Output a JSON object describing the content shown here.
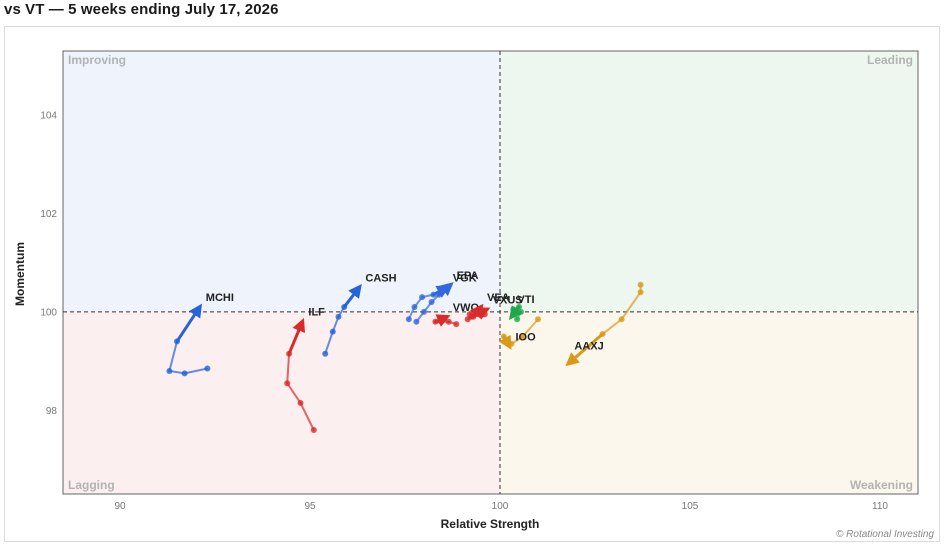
{
  "title": "vs VT — 5 weeks ending July 17, 2026",
  "copyright": "© Rotational Investing",
  "quadrants": {
    "improving": "Improving",
    "leading": "Leading",
    "lagging": "Lagging",
    "weakening": "Weakening"
  },
  "colors": {
    "improving_bg": "#eef3fc",
    "leading_bg": "#edf6ef",
    "lagging_bg": "#fcefef",
    "weakening_bg": "#fbf7ec",
    "quadrant_label": "#b3b3b3"
  },
  "chart_data": {
    "type": "scatter",
    "title": "vs VT — 5 weeks ending July 17, 2026",
    "xlabel": "Relative Strength",
    "ylabel": "Momentum",
    "xlim": [
      88.5,
      111
    ],
    "ylim": [
      96.3,
      105.3
    ],
    "xticks": [
      90,
      95,
      100,
      105,
      110
    ],
    "yticks": [
      98,
      100,
      102,
      104
    ],
    "center": [
      100,
      100
    ],
    "grid": false,
    "series": [
      {
        "name": "MCHI",
        "color": "#2563d9",
        "points": [
          [
            92.3,
            98.85
          ],
          [
            91.7,
            98.75
          ],
          [
            91.3,
            98.8
          ],
          [
            91.5,
            99.4
          ],
          [
            92.1,
            100.1
          ]
        ]
      },
      {
        "name": "CASH",
        "color": "#2563d9",
        "points": [
          [
            95.4,
            99.15
          ],
          [
            95.6,
            99.6
          ],
          [
            95.75,
            99.9
          ],
          [
            95.9,
            100.1
          ],
          [
            96.3,
            100.5
          ]
        ]
      },
      {
        "name": "VGK",
        "color": "#3068df",
        "points": [
          [
            97.6,
            99.85
          ],
          [
            97.75,
            100.1
          ],
          [
            97.95,
            100.3
          ],
          [
            98.25,
            100.35
          ],
          [
            98.6,
            100.5
          ]
        ]
      },
      {
        "name": "EPA",
        "color": "#3068df",
        "points": [
          [
            97.8,
            99.8
          ],
          [
            98.0,
            100.0
          ],
          [
            98.2,
            100.2
          ],
          [
            98.4,
            100.35
          ],
          [
            98.7,
            100.55
          ]
        ]
      },
      {
        "name": "ILF",
        "color": "#d92a2a",
        "points": [
          [
            95.1,
            97.6
          ],
          [
            94.75,
            98.15
          ],
          [
            94.4,
            98.55
          ],
          [
            94.45,
            99.15
          ],
          [
            94.8,
            99.8
          ]
        ]
      },
      {
        "name": "VWO",
        "color": "#d92a2a",
        "points": [
          [
            98.85,
            99.75
          ],
          [
            98.65,
            99.8
          ],
          [
            98.45,
            99.8
          ],
          [
            98.3,
            99.8
          ],
          [
            98.6,
            99.9
          ]
        ]
      },
      {
        "name": "VEA",
        "color": "#d92a2a",
        "points": [
          [
            99.2,
            99.95
          ],
          [
            99.4,
            100.0
          ],
          [
            99.6,
            99.95
          ],
          [
            99.35,
            99.95
          ],
          [
            99.5,
            100.1
          ]
        ]
      },
      {
        "name": "VXUS",
        "color": "#d92a2a",
        "points": [
          [
            99.15,
            99.85
          ],
          [
            99.3,
            99.9
          ],
          [
            99.45,
            99.95
          ],
          [
            99.25,
            99.9
          ],
          [
            99.65,
            100.05
          ]
        ]
      },
      {
        "name": "VTI",
        "color": "#1ea84a",
        "points": [
          [
            100.45,
            99.85
          ],
          [
            100.55,
            100.0
          ],
          [
            100.35,
            100.05
          ],
          [
            100.5,
            100.1
          ],
          [
            100.3,
            99.9
          ]
        ]
      },
      {
        "name": "IOO",
        "color": "#d99a1a",
        "points": [
          [
            101.0,
            99.85
          ],
          [
            100.6,
            99.5
          ],
          [
            100.3,
            99.35
          ],
          [
            100.1,
            99.5
          ],
          [
            100.25,
            99.3
          ]
        ]
      },
      {
        "name": "AAXJ",
        "color": "#d99a1a",
        "points": [
          [
            103.7,
            100.55
          ],
          [
            103.7,
            100.4
          ],
          [
            103.2,
            99.85
          ],
          [
            102.7,
            99.55
          ],
          [
            101.8,
            98.95
          ]
        ]
      }
    ]
  }
}
